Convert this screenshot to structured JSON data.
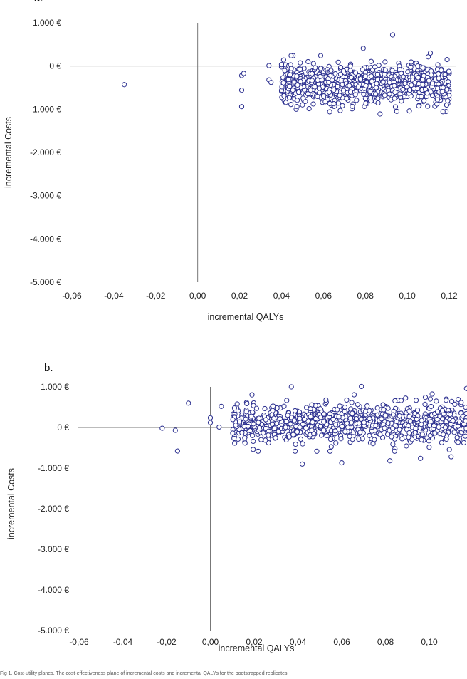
{
  "chart_data": [
    {
      "panel_label": "a.",
      "type": "scatter",
      "xlabel": "incremental QALYs",
      "ylabel": "incremental Costs",
      "xlim": [
        -0.06,
        0.125
      ],
      "ylim": [
        -5000,
        1000
      ],
      "x_ticks": [
        "-0,06",
        "-0,04",
        "-0,02",
        "0,00",
        "0,02",
        "0,04",
        "0,06",
        "0,08",
        "0,10",
        "0,12"
      ],
      "y_ticks": [
        "1.000 €",
        "0 €",
        "-1.000 €",
        "-2.000 €",
        "-3.000 €",
        "-4.000 €",
        "-5.000 €"
      ],
      "points_note": "approximately 1000 bootstrap replicates; main cloud spans x 0.04–0.12, y -1100 to 300",
      "points_seed": 11,
      "points_cloud": {
        "x_min": 0.04,
        "x_max": 0.12,
        "y_center": -420,
        "y_spread": 300,
        "count": 950
      },
      "points": [
        [
          -0.035,
          -430
        ],
        [
          0.021,
          -220
        ],
        [
          0.022,
          -170
        ],
        [
          0.021,
          -560
        ],
        [
          0.021,
          -940
        ],
        [
          0.034,
          10
        ],
        [
          0.034,
          -320
        ],
        [
          0.035,
          -380
        ],
        [
          0.04,
          -20
        ],
        [
          0.041,
          140
        ],
        [
          0.043,
          -520
        ],
        [
          0.045,
          -660
        ],
        [
          0.047,
          -1000
        ],
        [
          0.05,
          -900
        ],
        [
          0.079,
          410
        ],
        [
          0.093,
          720
        ],
        [
          0.111,
          300
        ],
        [
          0.119,
          150
        ],
        [
          0.087,
          -1110
        ],
        [
          0.095,
          -1050
        ],
        [
          0.063,
          -1060
        ],
        [
          0.068,
          -1030
        ],
        [
          0.101,
          -1040
        ]
      ]
    },
    {
      "panel_label": "b.",
      "type": "scatter",
      "xlabel": "incremental QALYs",
      "ylabel": "incremental Costs",
      "xlim": [
        -0.06,
        0.12
      ],
      "ylim": [
        -5000,
        1000
      ],
      "x_ticks": [
        "-0,06",
        "-0,04",
        "-0,02",
        "0,00",
        "0,02",
        "0,04",
        "0,06",
        "0,08",
        "0,10"
      ],
      "y_ticks": [
        "1.000 €",
        "0 €",
        "-1.000 €",
        "-2.000 €",
        "-3.000 €",
        "-4.000 €",
        "-5.000 €"
      ],
      "points_note": "approximately 1000 bootstrap replicates; main cloud spans x 0.0–0.12, y -900 to 1000",
      "points_seed": 23,
      "points_cloud": {
        "x_min": 0.01,
        "x_max": 0.125,
        "y_center": 120,
        "y_spread": 320,
        "count": 950
      },
      "points": [
        [
          -0.022,
          -20
        ],
        [
          -0.016,
          -70
        ],
        [
          -0.015,
          -580
        ],
        [
          -0.01,
          600
        ],
        [
          0.0,
          240
        ],
        [
          0.0,
          120
        ],
        [
          0.004,
          10
        ],
        [
          0.005,
          520
        ],
        [
          0.011,
          -230
        ],
        [
          0.037,
          1000
        ],
        [
          0.069,
          1010
        ],
        [
          0.042,
          -900
        ],
        [
          0.06,
          -870
        ],
        [
          0.082,
          -820
        ],
        [
          0.096,
          -760
        ],
        [
          0.11,
          -720
        ],
        [
          0.117,
          960
        ],
        [
          0.121,
          1000
        ]
      ]
    }
  ],
  "caption": "Fig 1. Cost-utility planes. The cost-effectiveness plane of incremental costs and incremental QALYs for the bootstrapped replicates."
}
